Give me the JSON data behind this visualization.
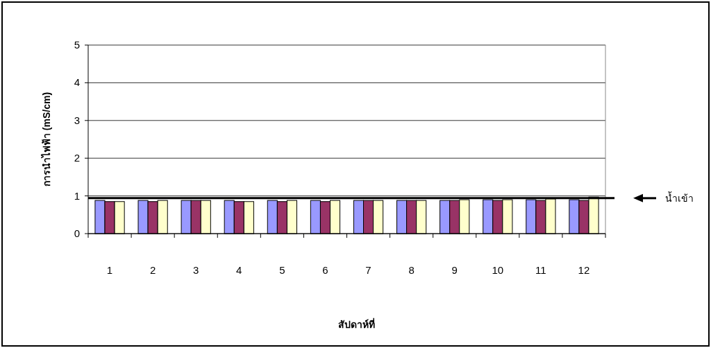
{
  "chart_data": {
    "type": "bar",
    "xlabel": "สัปดาห์ที่",
    "ylabel": "การนำไฟฟ้า (mS/cm)",
    "categories": [
      "1",
      "2",
      "3",
      "4",
      "5",
      "6",
      "7",
      "8",
      "9",
      "10",
      "11",
      "12"
    ],
    "series": [
      {
        "color": "#9999ff",
        "values": [
          0.88,
          0.88,
          0.88,
          0.88,
          0.88,
          0.88,
          0.88,
          0.88,
          0.88,
          0.9,
          0.9,
          0.9
        ]
      },
      {
        "color": "#993366",
        "values": [
          0.85,
          0.85,
          0.88,
          0.85,
          0.85,
          0.85,
          0.88,
          0.88,
          0.88,
          0.88,
          0.88,
          0.88
        ]
      },
      {
        "color": "#ffffcc",
        "values": [
          0.85,
          0.88,
          0.88,
          0.85,
          0.88,
          0.88,
          0.88,
          0.88,
          0.9,
          0.9,
          0.92,
          0.97
        ]
      }
    ],
    "ylim": [
      0,
      5
    ],
    "yticks": [
      0,
      1,
      2,
      3,
      4,
      5
    ],
    "grid": "y",
    "ref_lines": [
      {
        "axis": "y",
        "value": 0.94,
        "label": "น้ำเข้า",
        "color": "#000000"
      }
    ]
  }
}
